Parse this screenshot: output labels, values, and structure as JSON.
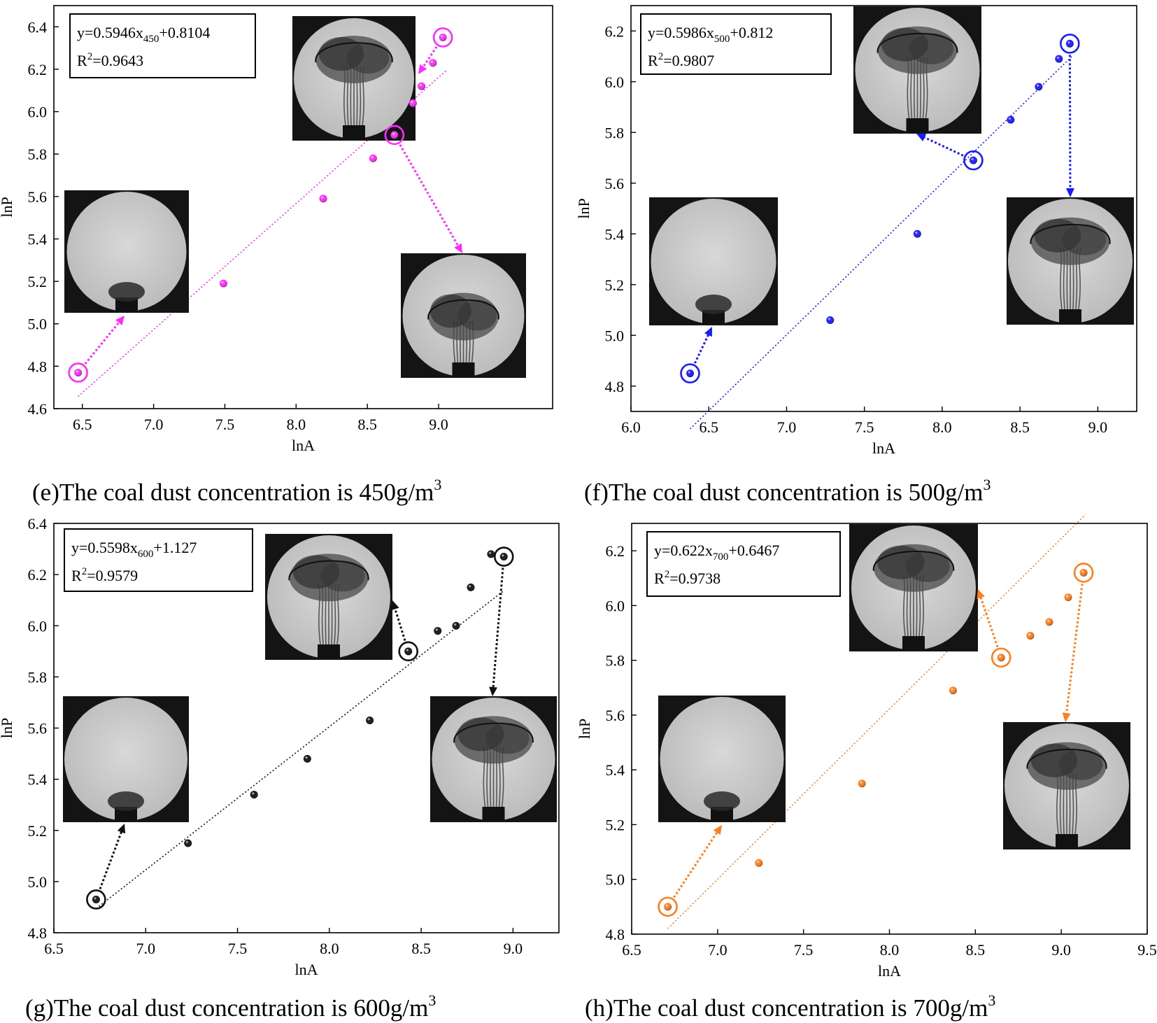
{
  "chart_data": [
    {
      "type": "scatter",
      "panel": "e",
      "caption_prefix": "(e)The coal dust concentration is 450g/m",
      "caption_sup": "3",
      "xlabel": "lnA",
      "ylabel": "lnP",
      "xlim": [
        6.3,
        9.8
      ],
      "ylim": [
        4.6,
        6.5
      ],
      "xticks": [
        "6.5",
        "7.0",
        "7.5",
        "8.0",
        "8.5",
        "9.0"
      ],
      "yticks": [
        "4.6",
        "4.8",
        "5.0",
        "5.2",
        "5.4",
        "5.6",
        "5.8",
        "6.0",
        "6.2",
        "6.4"
      ],
      "color": "#ff2cff",
      "fit": {
        "slope": 0.5946,
        "intercept": 0.8104,
        "x_start": 6.47,
        "x_end": 9.06
      },
      "equation": {
        "lhs": "y=0.5946x",
        "sub": "450",
        "rhs": "+0.8104",
        "r2_label": "R",
        "r2_sup": "2",
        "r2_value": "=0.9643"
      },
      "series": [
        {
          "name": "lnP vs lnA",
          "x": [
            6.47,
            7.49,
            8.19,
            8.54,
            8.69,
            8.82,
            8.88,
            8.96,
            9.03
          ],
          "y": [
            4.77,
            5.19,
            5.59,
            5.78,
            5.89,
            6.04,
            6.12,
            6.23,
            6.35
          ],
          "circled": [
            0,
            4,
            8
          ]
        }
      ]
    },
    {
      "type": "scatter",
      "panel": "f",
      "caption_prefix": "(f)The coal dust concentration is 500g/m",
      "caption_sup": "3",
      "xlabel": "lnA",
      "ylabel": "lnP",
      "xlim": [
        6.0,
        9.25
      ],
      "ylim": [
        4.7,
        6.3
      ],
      "xticks": [
        "6.0",
        "6.5",
        "7.0",
        "7.5",
        "8.0",
        "8.5",
        "9.0"
      ],
      "yticks": [
        "4.8",
        "5.0",
        "5.2",
        "5.4",
        "5.6",
        "5.8",
        "6.0",
        "6.2"
      ],
      "color": "#1a1aff",
      "fit": {
        "slope": 0.5986,
        "intercept": 0.812,
        "x_start": 6.38,
        "x_end": 8.84
      },
      "equation": {
        "lhs": "y=0.5986x",
        "sub": "500",
        "rhs": "+0.812",
        "r2_label": "R",
        "r2_sup": "2",
        "r2_value": "=0.9807"
      },
      "series": [
        {
          "name": "lnP vs lnA",
          "x": [
            6.38,
            7.28,
            7.84,
            8.2,
            8.44,
            8.62,
            8.75,
            8.82
          ],
          "y": [
            4.85,
            5.06,
            5.4,
            5.69,
            5.85,
            5.98,
            6.09,
            6.15
          ],
          "circled": [
            0,
            3,
            7
          ]
        }
      ]
    },
    {
      "type": "scatter",
      "panel": "g",
      "caption_prefix": "(g)The coal dust concentration is 600g/m",
      "caption_sup": "3",
      "xlabel": "lnA",
      "ylabel": "lnP",
      "xlim": [
        6.5,
        9.25
      ],
      "ylim": [
        4.8,
        6.4
      ],
      "xticks": [
        "6.5",
        "7.0",
        "7.5",
        "8.0",
        "8.5",
        "9.0"
      ],
      "yticks": [
        "4.8",
        "5.0",
        "5.2",
        "5.4",
        "5.6",
        "5.8",
        "6.0",
        "6.2",
        "6.4"
      ],
      "color": "#111111",
      "fit": {
        "slope": 0.5598,
        "intercept": 1.127,
        "x_start": 6.73,
        "x_end": 8.95
      },
      "equation": {
        "lhs": "y=0.5598x",
        "sub": "600",
        "rhs": "+1.127",
        "r2_label": "R",
        "r2_sup": "2",
        "r2_value": "=0.9579"
      },
      "series": [
        {
          "name": "lnP vs lnA",
          "x": [
            6.73,
            7.23,
            7.59,
            7.88,
            8.22,
            8.43,
            8.59,
            8.69,
            8.77,
            8.88,
            8.95
          ],
          "y": [
            4.93,
            5.15,
            5.34,
            5.48,
            5.63,
            5.9,
            5.98,
            6.0,
            6.15,
            6.28,
            6.27
          ],
          "circled": [
            0,
            5,
            10
          ]
        }
      ]
    },
    {
      "type": "scatter",
      "panel": "h",
      "caption_prefix": "(h)The coal dust concentration is 700g/m",
      "caption_sup": "3",
      "xlabel": "lnA",
      "ylabel": "lnP",
      "xlim": [
        6.5,
        9.5
      ],
      "ylim": [
        4.8,
        6.3
      ],
      "xticks": [
        "6.5",
        "7.0",
        "7.5",
        "8.0",
        "8.5",
        "9.0",
        "9.5"
      ],
      "yticks": [
        "4.8",
        "5.0",
        "5.2",
        "5.4",
        "5.6",
        "5.8",
        "6.0",
        "6.2"
      ],
      "color": "#ff7f1e",
      "fit": {
        "slope": 0.622,
        "intercept": 0.6467,
        "x_start": 6.71,
        "x_end": 9.14
      },
      "equation": {
        "lhs": "y=0.622x",
        "sub": "700",
        "rhs": "+0.6467",
        "r2_label": "R",
        "r2_sup": "2",
        "r2_value": "=0.9738"
      },
      "series": [
        {
          "name": "lnP vs lnA",
          "x": [
            6.71,
            7.24,
            7.84,
            8.37,
            8.65,
            8.82,
            8.93,
            9.04,
            9.13
          ],
          "y": [
            4.9,
            5.06,
            5.35,
            5.69,
            5.81,
            5.89,
            5.94,
            6.03,
            6.12
          ],
          "circled": [
            0,
            4,
            8
          ]
        }
      ]
    }
  ]
}
